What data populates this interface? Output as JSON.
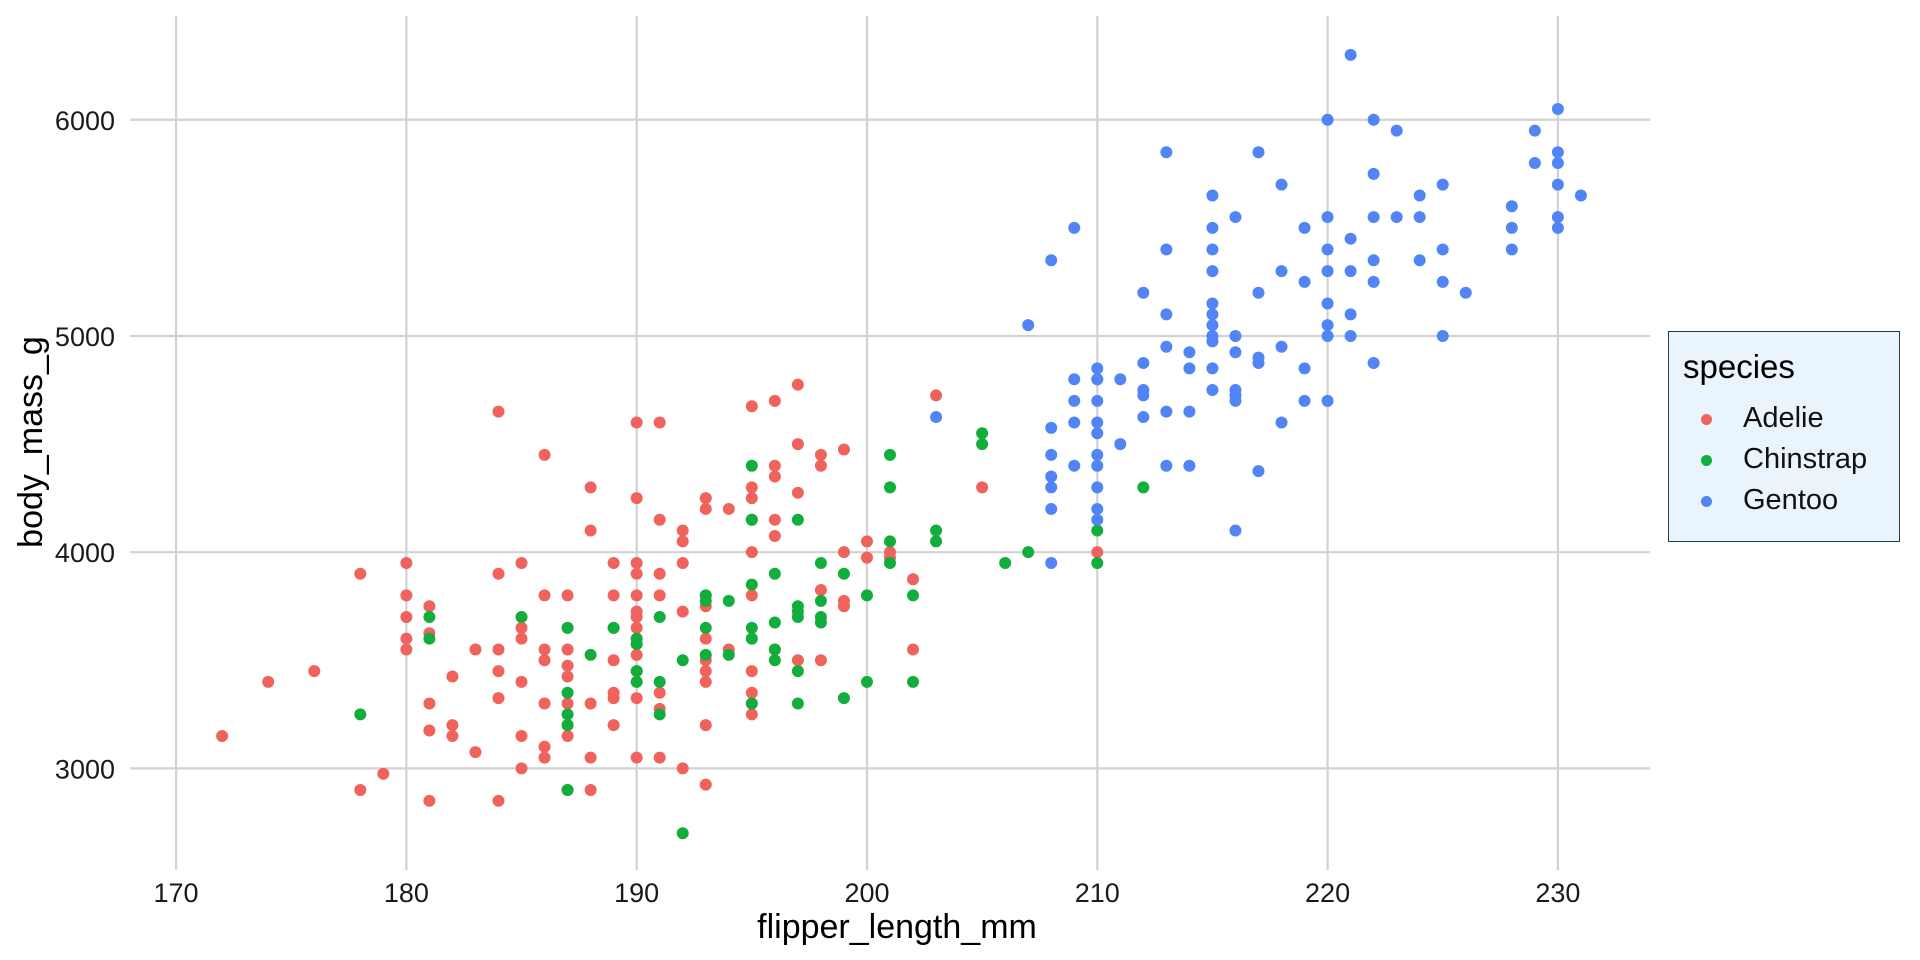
{
  "chart_data": {
    "type": "scatter",
    "title": "",
    "xlabel": "flipper_length_mm",
    "ylabel": "body_mass_g",
    "xlim": [
      168,
      234
    ],
    "ylim": [
      2530,
      6480
    ],
    "xticks": [
      170,
      180,
      190,
      200,
      210,
      220,
      230
    ],
    "yticks": [
      3000,
      4000,
      5000,
      6000
    ],
    "grid": true,
    "legend": {
      "title": "species",
      "placement": "right"
    },
    "series": [
      {
        "name": "Adelie",
        "color": "#f0635c",
        "points": [
          [
            172,
            3150
          ],
          [
            174,
            3400
          ],
          [
            176,
            3450
          ],
          [
            178,
            2900
          ],
          [
            178,
            3900
          ],
          [
            179,
            2975
          ],
          [
            180,
            3550
          ],
          [
            180,
            3600
          ],
          [
            180,
            3700
          ],
          [
            180,
            3800
          ],
          [
            180,
            3950
          ],
          [
            181,
            2850
          ],
          [
            181,
            3175
          ],
          [
            181,
            3300
          ],
          [
            181,
            3625
          ],
          [
            181,
            3750
          ],
          [
            182,
            3150
          ],
          [
            182,
            3200
          ],
          [
            182,
            3425
          ],
          [
            183,
            3075
          ],
          [
            183,
            3550
          ],
          [
            184,
            2850
          ],
          [
            184,
            3325
          ],
          [
            184,
            3450
          ],
          [
            184,
            3550
          ],
          [
            184,
            3900
          ],
          [
            184,
            4650
          ],
          [
            185,
            3000
          ],
          [
            185,
            3150
          ],
          [
            185,
            3400
          ],
          [
            185,
            3600
          ],
          [
            185,
            3650
          ],
          [
            185,
            3950
          ],
          [
            186,
            3050
          ],
          [
            186,
            3100
          ],
          [
            186,
            3300
          ],
          [
            186,
            3500
          ],
          [
            186,
            3550
          ],
          [
            186,
            3800
          ],
          [
            186,
            4450
          ],
          [
            187,
            2900
          ],
          [
            187,
            3150
          ],
          [
            187,
            3200
          ],
          [
            187,
            3300
          ],
          [
            187,
            3425
          ],
          [
            187,
            3475
          ],
          [
            187,
            3550
          ],
          [
            187,
            3650
          ],
          [
            187,
            3800
          ],
          [
            188,
            2900
          ],
          [
            188,
            3050
          ],
          [
            188,
            3300
          ],
          [
            188,
            4100
          ],
          [
            188,
            4300
          ],
          [
            189,
            3200
          ],
          [
            189,
            3325
          ],
          [
            189,
            3350
          ],
          [
            189,
            3500
          ],
          [
            189,
            3650
          ],
          [
            189,
            3800
          ],
          [
            189,
            3950
          ],
          [
            190,
            3050
          ],
          [
            190,
            3325
          ],
          [
            190,
            3450
          ],
          [
            190,
            3525
          ],
          [
            190,
            3575
          ],
          [
            190,
            3600
          ],
          [
            190,
            3650
          ],
          [
            190,
            3700
          ],
          [
            190,
            3725
          ],
          [
            190,
            3800
          ],
          [
            190,
            3900
          ],
          [
            190,
            3950
          ],
          [
            190,
            4250
          ],
          [
            190,
            4600
          ],
          [
            191,
            3050
          ],
          [
            191,
            3275
          ],
          [
            191,
            3350
          ],
          [
            191,
            3800
          ],
          [
            191,
            3900
          ],
          [
            191,
            4150
          ],
          [
            191,
            4600
          ],
          [
            192,
            3000
          ],
          [
            192,
            3725
          ],
          [
            192,
            3950
          ],
          [
            192,
            4050
          ],
          [
            192,
            4100
          ],
          [
            193,
            2925
          ],
          [
            193,
            3200
          ],
          [
            193,
            3400
          ],
          [
            193,
            3450
          ],
          [
            193,
            3500
          ],
          [
            193,
            3600
          ],
          [
            193,
            3750
          ],
          [
            193,
            3800
          ],
          [
            193,
            4200
          ],
          [
            193,
            4250
          ],
          [
            194,
            3550
          ],
          [
            194,
            4200
          ],
          [
            195,
            3250
          ],
          [
            195,
            3300
          ],
          [
            195,
            3350
          ],
          [
            195,
            3450
          ],
          [
            195,
            3600
          ],
          [
            195,
            3800
          ],
          [
            195,
            4000
          ],
          [
            195,
            4150
          ],
          [
            195,
            4250
          ],
          [
            195,
            4300
          ],
          [
            195,
            4675
          ],
          [
            196,
            3550
          ],
          [
            196,
            4075
          ],
          [
            196,
            4150
          ],
          [
            196,
            4350
          ],
          [
            196,
            4400
          ],
          [
            196,
            4700
          ],
          [
            197,
            3500
          ],
          [
            197,
            4275
          ],
          [
            197,
            4500
          ],
          [
            197,
            4775
          ],
          [
            198,
            3500
          ],
          [
            198,
            3825
          ],
          [
            198,
            4400
          ],
          [
            198,
            4450
          ],
          [
            199,
            3750
          ],
          [
            199,
            3775
          ],
          [
            199,
            4000
          ],
          [
            199,
            4475
          ],
          [
            200,
            3975
          ],
          [
            200,
            4050
          ],
          [
            201,
            3975
          ],
          [
            201,
            4000
          ],
          [
            202,
            3550
          ],
          [
            202,
            3875
          ],
          [
            203,
            4725
          ],
          [
            205,
            4300
          ],
          [
            210,
            4000
          ]
        ]
      },
      {
        "name": "Chinstrap",
        "color": "#12ae3c",
        "points": [
          [
            178,
            3250
          ],
          [
            181,
            3600
          ],
          [
            181,
            3700
          ],
          [
            185,
            3700
          ],
          [
            187,
            2900
          ],
          [
            187,
            3200
          ],
          [
            187,
            3250
          ],
          [
            187,
            3350
          ],
          [
            187,
            3650
          ],
          [
            188,
            3525
          ],
          [
            189,
            3650
          ],
          [
            190,
            3400
          ],
          [
            190,
            3450
          ],
          [
            190,
            3575
          ],
          [
            190,
            3600
          ],
          [
            191,
            3250
          ],
          [
            191,
            3400
          ],
          [
            191,
            3700
          ],
          [
            192,
            2700
          ],
          [
            192,
            3500
          ],
          [
            193,
            3525
          ],
          [
            193,
            3650
          ],
          [
            193,
            3775
          ],
          [
            193,
            3800
          ],
          [
            194,
            3525
          ],
          [
            194,
            3775
          ],
          [
            195,
            3300
          ],
          [
            195,
            3600
          ],
          [
            195,
            3650
          ],
          [
            195,
            3850
          ],
          [
            195,
            4150
          ],
          [
            195,
            4400
          ],
          [
            196,
            3500
          ],
          [
            196,
            3550
          ],
          [
            196,
            3675
          ],
          [
            196,
            3900
          ],
          [
            197,
            3300
          ],
          [
            197,
            3450
          ],
          [
            197,
            3700
          ],
          [
            197,
            3725
          ],
          [
            197,
            3750
          ],
          [
            197,
            4150
          ],
          [
            198,
            3675
          ],
          [
            198,
            3700
          ],
          [
            198,
            3775
          ],
          [
            198,
            3950
          ],
          [
            199,
            3325
          ],
          [
            199,
            3900
          ],
          [
            200,
            3400
          ],
          [
            200,
            3800
          ],
          [
            201,
            3950
          ],
          [
            201,
            4050
          ],
          [
            201,
            4300
          ],
          [
            201,
            4450
          ],
          [
            202,
            3400
          ],
          [
            202,
            3800
          ],
          [
            203,
            4050
          ],
          [
            203,
            4100
          ],
          [
            205,
            4500
          ],
          [
            205,
            4550
          ],
          [
            206,
            3950
          ],
          [
            207,
            4000
          ],
          [
            210,
            3950
          ],
          [
            210,
            4100
          ],
          [
            210,
            4800
          ],
          [
            212,
            4300
          ]
        ]
      },
      {
        "name": "Gentoo",
        "color": "#5185f6",
        "points": [
          [
            203,
            4625
          ],
          [
            207,
            5050
          ],
          [
            208,
            3950
          ],
          [
            208,
            4200
          ],
          [
            208,
            4300
          ],
          [
            208,
            4350
          ],
          [
            208,
            4450
          ],
          [
            208,
            4575
          ],
          [
            208,
            5350
          ],
          [
            209,
            4400
          ],
          [
            209,
            4600
          ],
          [
            209,
            4700
          ],
          [
            209,
            4800
          ],
          [
            209,
            5500
          ],
          [
            210,
            4150
          ],
          [
            210,
            4200
          ],
          [
            210,
            4300
          ],
          [
            210,
            4400
          ],
          [
            210,
            4450
          ],
          [
            210,
            4550
          ],
          [
            210,
            4600
          ],
          [
            210,
            4700
          ],
          [
            210,
            4800
          ],
          [
            210,
            4850
          ],
          [
            211,
            4500
          ],
          [
            211,
            4800
          ],
          [
            212,
            4625
          ],
          [
            212,
            4725
          ],
          [
            212,
            4750
          ],
          [
            212,
            4875
          ],
          [
            212,
            5200
          ],
          [
            213,
            4400
          ],
          [
            213,
            4650
          ],
          [
            213,
            4950
          ],
          [
            213,
            5100
          ],
          [
            213,
            5400
          ],
          [
            213,
            5850
          ],
          [
            214,
            4400
          ],
          [
            214,
            4650
          ],
          [
            214,
            4850
          ],
          [
            214,
            4925
          ],
          [
            215,
            4750
          ],
          [
            215,
            4850
          ],
          [
            215,
            4975
          ],
          [
            215,
            5000
          ],
          [
            215,
            5050
          ],
          [
            215,
            5100
          ],
          [
            215,
            5150
          ],
          [
            215,
            5300
          ],
          [
            215,
            5400
          ],
          [
            215,
            5500
          ],
          [
            215,
            5650
          ],
          [
            216,
            4100
          ],
          [
            216,
            4700
          ],
          [
            216,
            4725
          ],
          [
            216,
            4750
          ],
          [
            216,
            4925
          ],
          [
            216,
            5000
          ],
          [
            216,
            5550
          ],
          [
            217,
            4375
          ],
          [
            217,
            4875
          ],
          [
            217,
            4900
          ],
          [
            217,
            5200
          ],
          [
            217,
            5850
          ],
          [
            218,
            4600
          ],
          [
            218,
            4950
          ],
          [
            218,
            5300
          ],
          [
            218,
            5700
          ],
          [
            219,
            4700
          ],
          [
            219,
            4850
          ],
          [
            219,
            5250
          ],
          [
            219,
            5500
          ],
          [
            220,
            4700
          ],
          [
            220,
            5000
          ],
          [
            220,
            5050
          ],
          [
            220,
            5150
          ],
          [
            220,
            5300
          ],
          [
            220,
            5400
          ],
          [
            220,
            5550
          ],
          [
            220,
            6000
          ],
          [
            221,
            5000
          ],
          [
            221,
            5100
          ],
          [
            221,
            5300
          ],
          [
            221,
            5450
          ],
          [
            221,
            6300
          ],
          [
            222,
            4875
          ],
          [
            222,
            5250
          ],
          [
            222,
            5350
          ],
          [
            222,
            5550
          ],
          [
            222,
            5750
          ],
          [
            222,
            6000
          ],
          [
            223,
            5550
          ],
          [
            223,
            5950
          ],
          [
            224,
            5350
          ],
          [
            224,
            5550
          ],
          [
            224,
            5650
          ],
          [
            225,
            5000
          ],
          [
            225,
            5250
          ],
          [
            225,
            5400
          ],
          [
            225,
            5700
          ],
          [
            226,
            5200
          ],
          [
            228,
            5400
          ],
          [
            228,
            5500
          ],
          [
            228,
            5600
          ],
          [
            229,
            5800
          ],
          [
            229,
            5950
          ],
          [
            230,
            5500
          ],
          [
            230,
            5550
          ],
          [
            230,
            5700
          ],
          [
            230,
            5800
          ],
          [
            230,
            5850
          ],
          [
            230,
            6050
          ],
          [
            231,
            5650
          ]
        ]
      }
    ]
  }
}
